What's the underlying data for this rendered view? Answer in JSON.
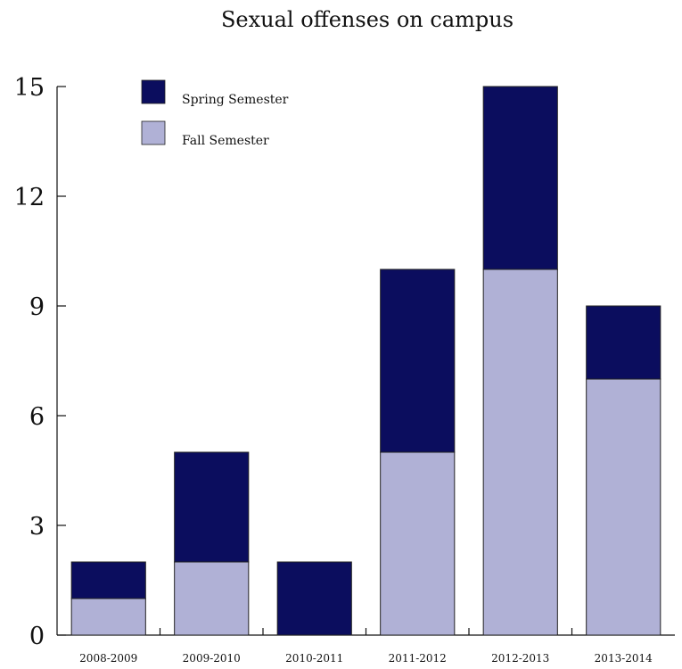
{
  "chart_data": {
    "type": "bar",
    "stacked": true,
    "title": "Sexual offenses on campus",
    "xlabel": "",
    "ylabel": "",
    "categories": [
      "2008-2009",
      "2009-2010",
      "2010-2011",
      "2011-2012",
      "2012-2013",
      "2013-2014"
    ],
    "series": [
      {
        "name": "Fall Semester",
        "values": [
          1,
          2,
          0,
          5,
          10,
          7
        ],
        "color": "#b0b1d6"
      },
      {
        "name": "Spring Semester",
        "values": [
          1,
          3,
          2,
          5,
          5,
          2
        ],
        "color": "#0b0d5e"
      }
    ],
    "legend_order": [
      "Spring Semester",
      "Fall Semester"
    ],
    "yticks": [
      0,
      3,
      6,
      9,
      12,
      15
    ],
    "ylim": [
      0,
      15
    ],
    "grid": false,
    "legend_position": "top-left"
  }
}
